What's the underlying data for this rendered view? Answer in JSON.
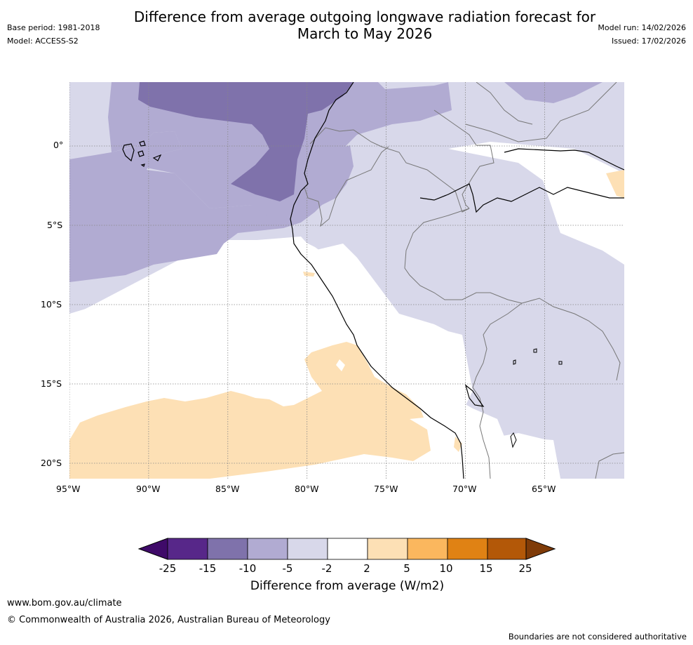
{
  "header": {
    "title_line1": "Difference from average outgoing longwave radiation forecast for",
    "title_line2": "March to May 2026",
    "base_period": "Base period: 1981-2018",
    "model": "Model: ACCESS-S2",
    "model_run": "Model run: 14/02/2026",
    "issued": "Issued: 17/02/2026"
  },
  "map": {
    "lon_labels": [
      "95°W",
      "90°W",
      "85°W",
      "80°W",
      "75°W",
      "70°W",
      "65°W"
    ],
    "lat_labels": [
      "0°",
      "5°S",
      "10°S",
      "15°S",
      "20°S"
    ],
    "colors": {
      "vs_neg15": "#7f72ab",
      "vs_neg10": "#b1abd2",
      "vs_neg5": "#d8d8ea",
      "neutral": "#ffffff",
      "vs_pos5": "#fde0b5",
      "coast": "#000000",
      "border": "#777777",
      "grid": "#888888"
    }
  },
  "colorbar": {
    "ticks": [
      "-25",
      "-15",
      "-10",
      "-5",
      "-2",
      "2",
      "5",
      "10",
      "15",
      "25"
    ],
    "colors": [
      "#3f0a69",
      "#572789",
      "#7f72ab",
      "#b1abd2",
      "#d8d8ea",
      "#ffffff",
      "#fde0b5",
      "#fbb75e",
      "#e08214",
      "#b35808",
      "#7f3b08"
    ],
    "label": "Difference from average (W/m2)"
  },
  "footer": {
    "url": "www.bom.gov.au/climate",
    "copyright": "© Commonwealth of Australia 2026, Australian Bureau of Meteorology",
    "disclaimer": "Boundaries are not considered authoritative"
  }
}
